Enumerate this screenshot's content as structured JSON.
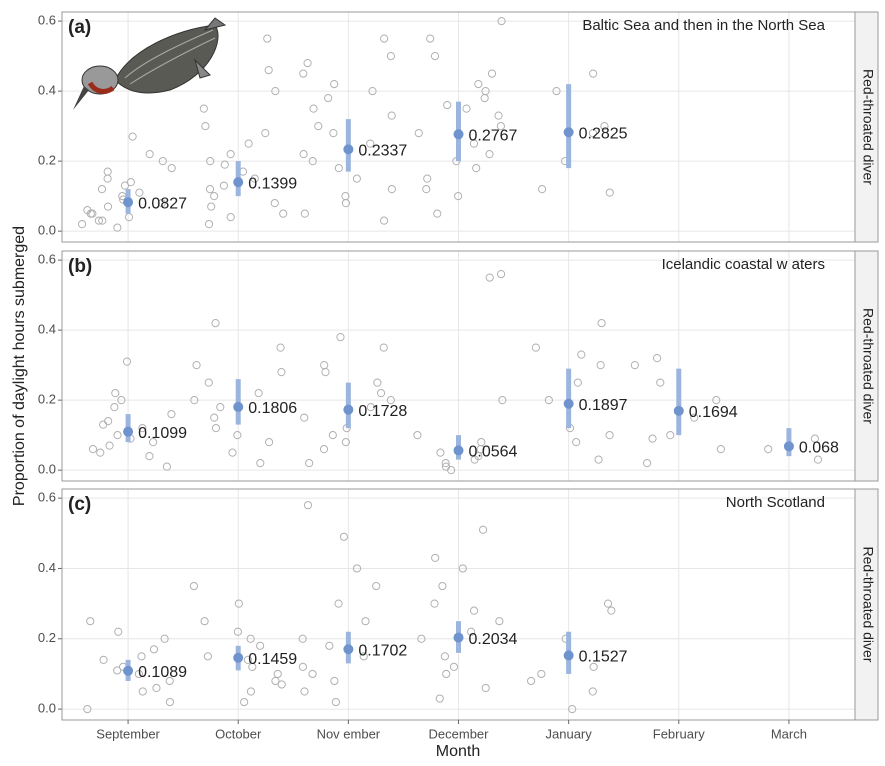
{
  "y_axis_label": "Proportion of daylight hours submerged",
  "x_axis": {
    "label": "Month",
    "categories": [
      "September",
      "October",
      "Nov ember",
      "December",
      "January",
      "February",
      "March"
    ]
  },
  "chart_data": [
    {
      "type": "scatter",
      "label": "(a)",
      "title": "Baltic Sea and then in the North Sea",
      "strip": "Red-throated diver",
      "color": "#6f93cc",
      "ylim": [
        -0.031,
        0.626
      ],
      "yticks": [
        {
          "value": 0,
          "label": "0.0"
        },
        0.2,
        0.4,
        0.6
      ],
      "grid": true,
      "values": [
        0.0827,
        0.1399,
        0.2337,
        0.2767,
        0.2825,
        null,
        null
      ],
      "lower": [
        0.05,
        0.1,
        0.17,
        0.2,
        0.18,
        null,
        null
      ],
      "upper": [
        0.12,
        0.2,
        0.32,
        0.37,
        0.42,
        null,
        null
      ],
      "points": [
        [
          0.02,
          0.03,
          0.05,
          0.07,
          0.1,
          0.12,
          0.15,
          0.17,
          0.2,
          0.22,
          0.04,
          0.08,
          0.13,
          0.18,
          0.06,
          0.01,
          0.11,
          0.09,
          0.14,
          0.27,
          0.03,
          0.05
        ],
        [
          0.02,
          0.05,
          0.08,
          0.1,
          0.13,
          0.17,
          0.2,
          0.25,
          0.3,
          0.35,
          0.4,
          0.55,
          0.07,
          0.22,
          0.28,
          0.15,
          0.04,
          0.19,
          0.46,
          0.12
        ],
        [
          0.05,
          0.1,
          0.15,
          0.2,
          0.25,
          0.3,
          0.35,
          0.38,
          0.42,
          0.45,
          0.5,
          0.55,
          0.08,
          0.18,
          0.28,
          0.33,
          0.12,
          0.22,
          0.4,
          0.03,
          0.48
        ],
        [
          0.05,
          0.1,
          0.15,
          0.2,
          0.25,
          0.3,
          0.35,
          0.38,
          0.4,
          0.45,
          0.5,
          0.55,
          0.6,
          0.22,
          0.28,
          0.33,
          0.42,
          0.18,
          0.12,
          0.36
        ],
        [
          0.12,
          0.2,
          0.3,
          0.4,
          0.45,
          0.11,
          0.28
        ],
        null,
        null
      ]
    },
    {
      "type": "scatter",
      "label": "(b)",
      "title": "Icelandic coastal w aters",
      "strip": "Red-throated diver",
      "color": "#6f93cc",
      "ylim": [
        -0.031,
        0.626
      ],
      "yticks": [
        {
          "value": 0,
          "label": "0.0"
        },
        0.2,
        0.4,
        0.6
      ],
      "grid": true,
      "values": [
        0.1099,
        0.1806,
        0.1728,
        0.0564,
        0.1897,
        0.1694,
        0.068
      ],
      "lower": [
        0.08,
        0.13,
        0.12,
        0.03,
        0.12,
        0.1,
        0.04
      ],
      "upper": [
        0.16,
        0.26,
        0.25,
        0.1,
        0.29,
        0.29,
        0.12
      ],
      "points": [
        [
          0.01,
          0.04,
          0.06,
          0.08,
          0.1,
          0.12,
          0.14,
          0.16,
          0.2,
          0.22,
          0.31,
          0.09,
          0.05,
          0.13,
          0.18,
          0.07
        ],
        [
          0.02,
          0.05,
          0.1,
          0.15,
          0.2,
          0.25,
          0.3,
          0.35,
          0.42,
          0.12,
          0.18,
          0.22,
          0.08,
          0.28
        ],
        [
          0.02,
          0.06,
          0.1,
          0.15,
          0.2,
          0.25,
          0.3,
          0.35,
          0.38,
          0.12,
          0.18,
          0.22,
          0.08,
          0.28
        ],
        [
          0.0,
          0.01,
          0.02,
          0.04,
          0.06,
          0.08,
          0.1,
          0.2,
          0.55,
          0.56,
          0.03,
          0.05
        ],
        [
          0.03,
          0.1,
          0.2,
          0.25,
          0.33,
          0.35,
          0.42,
          0.12,
          0.3,
          0.08
        ],
        [
          0.02,
          0.06,
          0.1,
          0.15,
          0.2,
          0.25,
          0.3,
          0.32,
          0.09
        ],
        [
          0.03,
          0.06,
          0.09
        ]
      ]
    },
    {
      "type": "scatter",
      "label": "(c)",
      "title": "North Scotland",
      "strip": "Red-throated diver",
      "color": "#6f93cc",
      "ylim": [
        -0.031,
        0.626
      ],
      "yticks": [
        {
          "value": 0,
          "label": "0.0"
        },
        0.2,
        0.4,
        0.6
      ],
      "grid": true,
      "values": [
        0.1089,
        0.1459,
        0.1702,
        0.2034,
        0.1527,
        null,
        null
      ],
      "lower": [
        0.08,
        0.11,
        0.13,
        0.16,
        0.1,
        null,
        null
      ],
      "upper": [
        0.14,
        0.18,
        0.22,
        0.25,
        0.22,
        null,
        null
      ],
      "points": [
        [
          0.0,
          0.02,
          0.05,
          0.08,
          0.1,
          0.12,
          0.14,
          0.17,
          0.2,
          0.22,
          0.25,
          0.06,
          0.11,
          0.15
        ],
        [
          0.02,
          0.05,
          0.08,
          0.12,
          0.15,
          0.18,
          0.2,
          0.25,
          0.3,
          0.35,
          0.1,
          0.22,
          0.07,
          0.14
        ],
        [
          0.02,
          0.05,
          0.08,
          0.12,
          0.15,
          0.2,
          0.25,
          0.3,
          0.35,
          0.4,
          0.49,
          0.58,
          0.1,
          0.18
        ],
        [
          0.03,
          0.06,
          0.1,
          0.15,
          0.2,
          0.25,
          0.3,
          0.35,
          0.4,
          0.43,
          0.51,
          0.12,
          0.22,
          0.28
        ],
        [
          0.0,
          0.05,
          0.08,
          0.1,
          0.12,
          0.2,
          0.28,
          0.3
        ],
        null,
        null
      ]
    }
  ]
}
